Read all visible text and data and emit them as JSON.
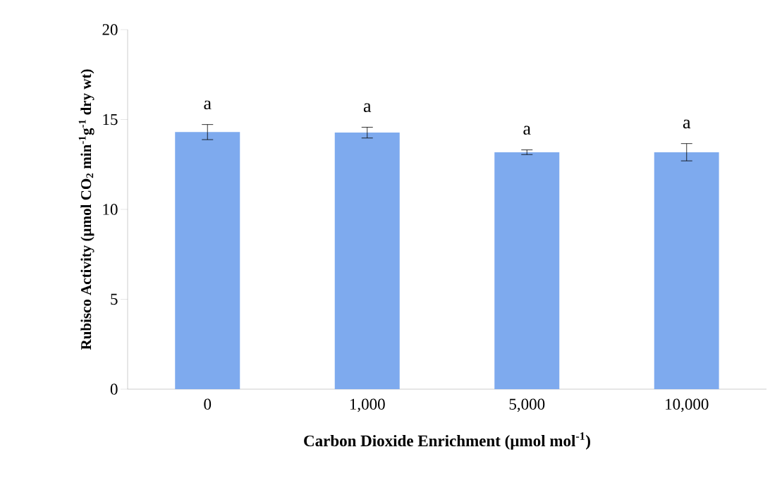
{
  "chart_data": {
    "type": "bar",
    "xlabel": "Carbon Dioxide Enrichment (µmol mol$^{-1}$)",
    "ylabel": "Rubisco Activity (µmol CO$_{2}$ min$^{-1}$g$^{-1}$ dry wt)",
    "categories": [
      "0",
      "1,000",
      "5,000",
      "10,000"
    ],
    "values": [
      14.3,
      14.27,
      13.18,
      13.18
    ],
    "errors": [
      0.42,
      0.3,
      0.13,
      0.48
    ],
    "color": "#7eaaee",
    "ylim": [
      0,
      20
    ],
    "yticks": [
      0,
      5,
      10,
      15,
      20
    ],
    "grid": false,
    "annotations": [
      "a",
      "a",
      "a",
      "a"
    ]
  }
}
